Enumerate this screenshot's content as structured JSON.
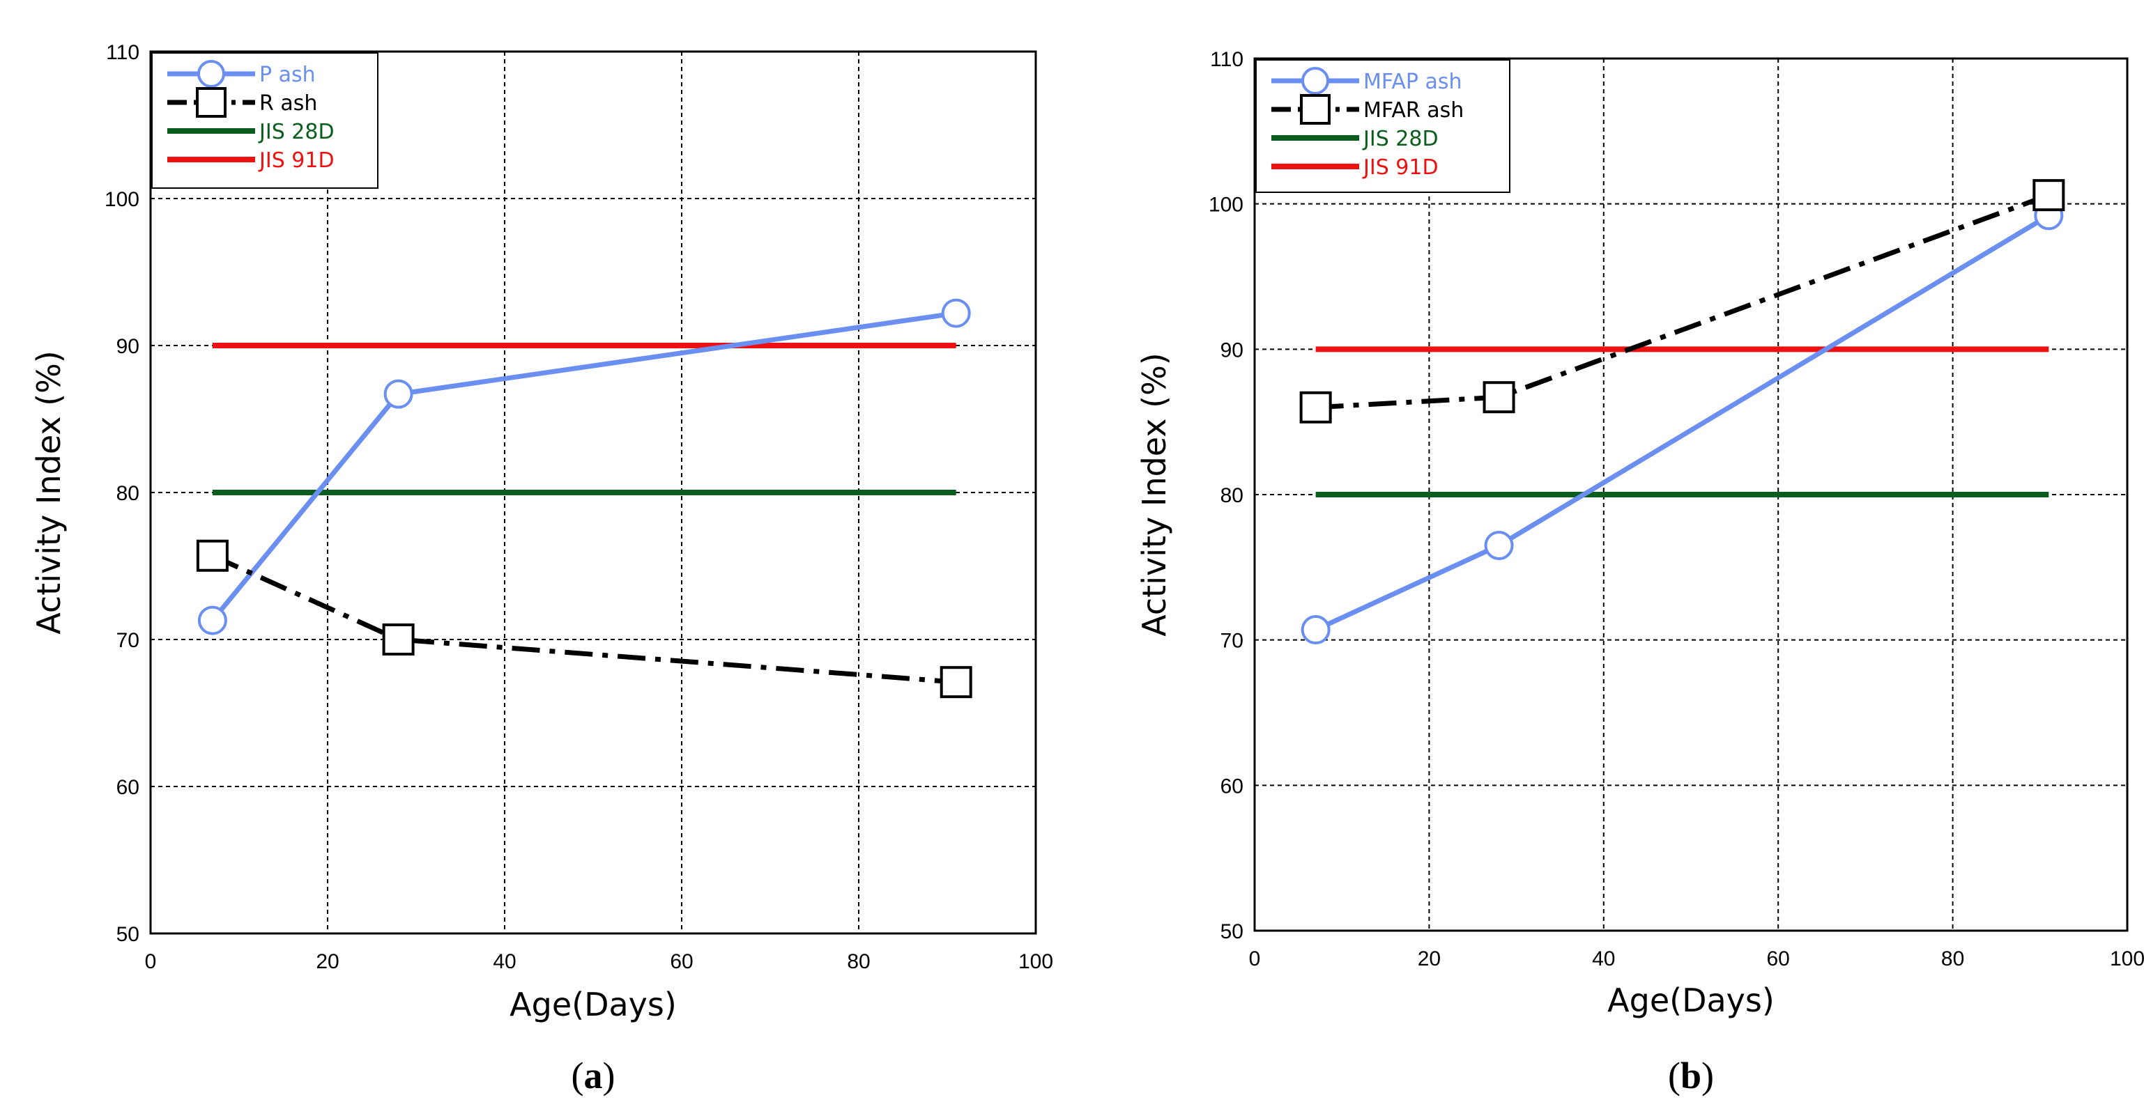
{
  "chart_data": [
    {
      "type": "line",
      "panel_label": "(a)",
      "xlabel": "Age(Days)",
      "ylabel": "Activity Index (%)",
      "xlim": [
        0,
        100
      ],
      "ylim": [
        50,
        110
      ],
      "xticks": [
        0,
        20,
        40,
        60,
        80,
        100
      ],
      "yticks": [
        50,
        60,
        70,
        80,
        90,
        100,
        110
      ],
      "grid": true,
      "legend_position": "top-left",
      "series": [
        {
          "name": "P ash",
          "color": "#6a8ff0",
          "marker": "circle",
          "dash": "solid",
          "x": [
            7,
            28,
            91
          ],
          "y": [
            71.3,
            86.7,
            92.2
          ]
        },
        {
          "name": "R ash",
          "color": "#000000",
          "marker": "square",
          "dash": "dashdot",
          "x": [
            7,
            28,
            91
          ],
          "y": [
            75.7,
            70.0,
            67.1
          ]
        },
        {
          "name": "JIS 28D",
          "color": "#0b5d1e",
          "marker": "none",
          "dash": "solid",
          "x": [
            7,
            91
          ],
          "y": [
            80,
            80
          ]
        },
        {
          "name": "JIS 91D",
          "color": "#ee1111",
          "marker": "none",
          "dash": "solid",
          "x": [
            7,
            91
          ],
          "y": [
            90,
            90
          ]
        }
      ]
    },
    {
      "type": "line",
      "panel_label": "(b)",
      "xlabel": "Age(Days)",
      "ylabel": "Activity Index (%)",
      "xlim": [
        0,
        100
      ],
      "ylim": [
        50,
        110
      ],
      "xticks": [
        0,
        20,
        40,
        60,
        80,
        100
      ],
      "yticks": [
        50,
        60,
        70,
        80,
        90,
        100,
        110
      ],
      "grid": true,
      "legend_position": "top-left",
      "series": [
        {
          "name": "MFAP ash",
          "color": "#6a8ff0",
          "marker": "circle",
          "dash": "solid",
          "x": [
            7,
            28,
            91
          ],
          "y": [
            70.7,
            76.5,
            99.2
          ]
        },
        {
          "name": "MFAR ash",
          "color": "#000000",
          "marker": "square",
          "dash": "dashdot",
          "x": [
            7,
            28,
            91
          ],
          "y": [
            86.0,
            86.7,
            100.6
          ]
        },
        {
          "name": "JIS 28D",
          "color": "#0b5d1e",
          "marker": "none",
          "dash": "solid",
          "x": [
            7,
            91
          ],
          "y": [
            80,
            80
          ]
        },
        {
          "name": "JIS 91D",
          "color": "#ee1111",
          "marker": "none",
          "dash": "solid",
          "x": [
            7,
            91
          ],
          "y": [
            90,
            90
          ]
        }
      ]
    }
  ]
}
